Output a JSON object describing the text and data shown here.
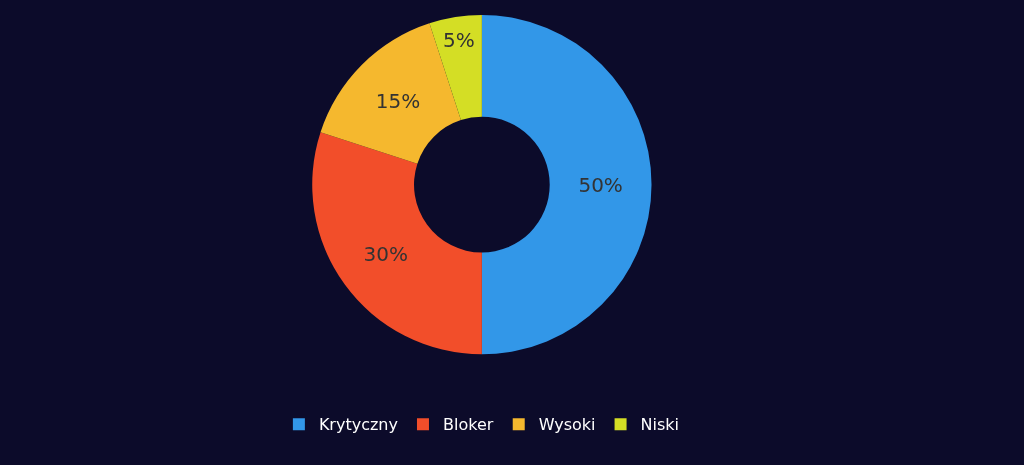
{
  "chart_data": {
    "type": "donut",
    "categories": [
      "Krytyczny",
      "Bloker",
      "Wysoki",
      "Niski"
    ],
    "values": [
      50,
      30,
      15,
      5
    ],
    "value_labels": [
      "50%",
      "30%",
      "15%",
      "5%"
    ],
    "colors": [
      "#3297e8",
      "#f24e2a",
      "#f5b82e",
      "#d4de25"
    ],
    "legend": "bottom"
  }
}
